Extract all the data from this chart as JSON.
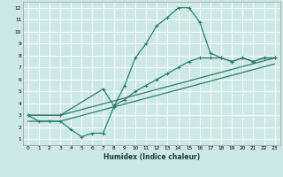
{
  "xlabel": "Humidex (Indice chaleur)",
  "bg_color": "#cce8e8",
  "grid_color": "#ffffff",
  "line_color": "#2e7d6e",
  "xlim": [
    -0.5,
    23.5
  ],
  "ylim": [
    0.5,
    12.5
  ],
  "xticks": [
    0,
    1,
    2,
    3,
    4,
    5,
    6,
    7,
    8,
    9,
    10,
    11,
    12,
    13,
    14,
    15,
    16,
    17,
    18,
    19,
    20,
    21,
    22,
    23
  ],
  "yticks": [
    1,
    2,
    3,
    4,
    5,
    6,
    7,
    8,
    9,
    10,
    11,
    12
  ],
  "line1_x": [
    0,
    1,
    2,
    3,
    4,
    5,
    6,
    7,
    8,
    9,
    10,
    11,
    12,
    13,
    14,
    15,
    16,
    17,
    18,
    19,
    20,
    21,
    22,
    23
  ],
  "line1_y": [
    3.0,
    2.5,
    2.5,
    2.5,
    1.8,
    1.2,
    1.5,
    1.5,
    3.7,
    5.5,
    7.8,
    9.0,
    10.5,
    11.2,
    12.0,
    12.0,
    10.8,
    8.2,
    7.8,
    7.5,
    7.8,
    7.5,
    7.8,
    7.8
  ],
  "line2_x": [
    0,
    3,
    7,
    8,
    9,
    10,
    11,
    12,
    13,
    14,
    15,
    16,
    17,
    18,
    19,
    20,
    21,
    22,
    23
  ],
  "line2_y": [
    3.0,
    3.0,
    5.2,
    3.8,
    4.3,
    5.0,
    5.5,
    6.0,
    6.5,
    7.0,
    7.5,
    7.8,
    7.8,
    7.8,
    7.5,
    7.8,
    7.5,
    7.8,
    7.8
  ],
  "line3_x": [
    0,
    3,
    23
  ],
  "line3_y": [
    3.0,
    3.0,
    7.8
  ],
  "line4_x": [
    0,
    3,
    23
  ],
  "line4_y": [
    2.5,
    2.5,
    7.3
  ]
}
